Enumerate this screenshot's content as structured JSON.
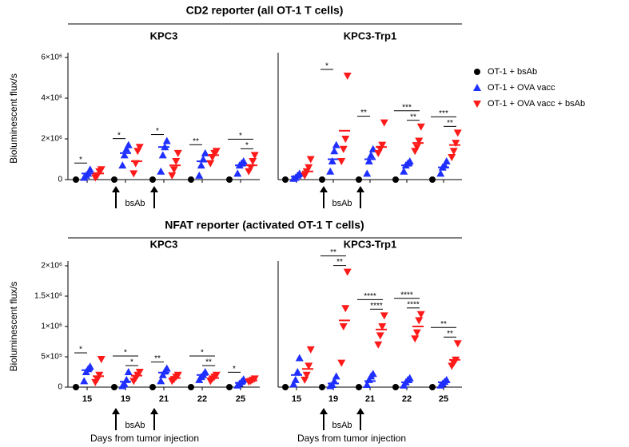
{
  "sections": [
    {
      "title": "CD2 reporter (all OT-1 T cells)"
    },
    {
      "title": "NFAT reporter (activated OT-1 T cells)"
    }
  ],
  "chart_data": [
    {
      "type": "scatter",
      "title": "KPC3",
      "ylabel": "Bioluminescent flux/s",
      "annotation": "bsAb",
      "categories": [
        null,
        null,
        null,
        null,
        null
      ],
      "ylim": [
        0,
        6000000
      ],
      "yticks": [
        0,
        {
          "value": 2000000,
          "label": "2×10⁶"
        },
        {
          "value": 4000000,
          "label": "4×10⁶"
        },
        {
          "value": 6000000,
          "label": "6×10⁶"
        }
      ],
      "series": [
        {
          "name": "OT-1 + bsAb",
          "color": "#000000",
          "marker": "circle",
          "values": [
            0,
            0,
            0,
            0,
            0
          ],
          "points": [
            [
              0
            ],
            [
              0
            ],
            [
              0
            ],
            [
              0
            ],
            [
              0
            ]
          ]
        },
        {
          "name": "OT-1 + OVA vacc",
          "color": "#1f2fff",
          "marker": "triangle-up",
          "values": [
            300000,
            1300000,
            1600000,
            900000,
            700000
          ],
          "points": [
            [
              100000,
              200000,
              300000,
              500000
            ],
            [
              700000,
              1200000,
              1500000,
              1700000
            ],
            [
              400000,
              1200000,
              1600000,
              1900000
            ],
            [
              200000,
              700000,
              1000000,
              1300000
            ],
            [
              300000,
              700000,
              800000,
              900000
            ]
          ]
        },
        {
          "name": "OT-1 + OVA vacc + bsAb",
          "color": "#ff1a1a",
          "marker": "triangle-down",
          "values": [
            300000,
            900000,
            700000,
            1200000,
            700000
          ],
          "points": [
            [
              100000,
              200000,
              400000,
              500000
            ],
            [
              300000,
              800000,
              1400000,
              1600000
            ],
            [
              200000,
              500000,
              900000,
              1300000
            ],
            [
              800000,
              1100000,
              1300000,
              1400000
            ],
            [
              400000,
              600000,
              900000,
              1200000
            ]
          ]
        }
      ],
      "significance": [
        [
          "*"
        ],
        [
          "*"
        ],
        [
          "*"
        ],
        [
          "**"
        ],
        [
          "*",
          "*"
        ]
      ]
    },
    {
      "type": "scatter",
      "title": "KPC3-Trp1",
      "annotation": "bsAb",
      "categories": [
        null,
        null,
        null,
        null,
        null
      ],
      "ylim": [
        0,
        6000000
      ],
      "series": [
        {
          "name": "OT-1 + bsAb",
          "color": "#000000",
          "marker": "circle",
          "values": [
            0,
            0,
            0,
            0,
            0
          ],
          "points": [
            [
              0
            ],
            [
              0
            ],
            [
              0
            ],
            [
              0
            ],
            [
              0
            ]
          ]
        },
        {
          "name": "OT-1 + OVA vacc",
          "color": "#1f2fff",
          "marker": "triangle-up",
          "values": [
            150000,
            1000000,
            1000000,
            700000,
            600000
          ],
          "points": [
            [
              50000,
              100000,
              200000,
              300000
            ],
            [
              400000,
              900000,
              1400000,
              1700000
            ],
            [
              300000,
              900000,
              1200000,
              1500000
            ],
            [
              400000,
              700000,
              800000,
              900000
            ],
            [
              300000,
              600000,
              700000,
              900000
            ]
          ]
        },
        {
          "name": "OT-1 + OVA vacc + bsAb",
          "color": "#ff1a1a",
          "marker": "triangle-down",
          "values": [
            400000,
            2400000,
            1600000,
            1800000,
            1700000
          ],
          "points": [
            [
              200000,
              400000,
              600000,
              1000000
            ],
            [
              900000,
              1500000,
              2000000,
              5100000
            ],
            [
              1300000,
              1500000,
              1700000,
              2800000
            ],
            [
              1400000,
              1600000,
              1900000,
              2600000
            ],
            [
              1100000,
              1400000,
              1800000,
              2300000
            ]
          ]
        }
      ],
      "significance": [
        [],
        [
          "*"
        ],
        [
          "**"
        ],
        [
          "***",
          "**"
        ],
        [
          "***",
          "**"
        ]
      ]
    },
    {
      "type": "scatter",
      "title": "KPC3",
      "ylabel": "Bioluminescent flux/s",
      "xlabel": "Days from tumor injection",
      "annotation": "bsAb",
      "categories": [
        "15",
        "19",
        "21",
        "22",
        "25"
      ],
      "ylim": [
        0,
        2000000
      ],
      "yticks": [
        0,
        {
          "value": 500000,
          "label": "5×10⁵"
        },
        {
          "value": 1000000,
          "label": "1×10⁶"
        },
        {
          "value": 1500000,
          "label": "1.5×10⁶"
        },
        {
          "value": 2000000,
          "label": "2×10⁶"
        }
      ],
      "series": [
        {
          "name": "OT-1 + bsAb",
          "color": "#000000",
          "marker": "circle",
          "values": [
            0,
            0,
            0,
            0,
            0
          ],
          "points": [
            [
              0
            ],
            [
              0
            ],
            [
              0
            ],
            [
              0
            ],
            [
              0
            ]
          ]
        },
        {
          "name": "OT-1 + OVA vacc",
          "color": "#1f2fff",
          "marker": "triangle-up",
          "values": [
            280000,
            90000,
            240000,
            200000,
            70000
          ],
          "points": [
            [
              100000,
              250000,
              300000,
              340000
            ],
            [
              20000,
              50000,
              120000,
              250000
            ],
            [
              100000,
              200000,
              260000,
              310000
            ],
            [
              120000,
              170000,
              200000,
              250000
            ],
            [
              30000,
              60000,
              90000,
              130000
            ]
          ]
        },
        {
          "name": "OT-1 + OVA vacc + bsAb",
          "color": "#ff1a1a",
          "marker": "triangle-down",
          "values": [
            180000,
            190000,
            150000,
            150000,
            110000
          ],
          "points": [
            [
              80000,
              130000,
              200000,
              460000
            ],
            [
              100000,
              150000,
              200000,
              250000
            ],
            [
              100000,
              130000,
              170000,
              200000
            ],
            [
              100000,
              140000,
              170000,
              200000
            ],
            [
              90000,
              100000,
              120000,
              140000
            ]
          ]
        }
      ],
      "significance": [
        [
          "*"
        ],
        [
          "*",
          "*"
        ],
        [
          "**"
        ],
        [
          "*",
          "**"
        ],
        [
          "*"
        ]
      ]
    },
    {
      "type": "scatter",
      "title": "KPC3-Trp1",
      "xlabel": "Days from tumor injection",
      "annotation": "bsAb",
      "categories": [
        "15",
        "19",
        "21",
        "22",
        "25"
      ],
      "ylim": [
        0,
        2000000
      ],
      "series": [
        {
          "name": "OT-1 + bsAb",
          "color": "#000000",
          "marker": "circle",
          "values": [
            0,
            0,
            0,
            0,
            0
          ],
          "points": [
            [
              0
            ],
            [
              0
            ],
            [
              0
            ],
            [
              0
            ],
            [
              0
            ]
          ]
        },
        {
          "name": "OT-1 + OVA vacc",
          "color": "#1f2fff",
          "marker": "triangle-up",
          "values": [
            200000,
            60000,
            100000,
            80000,
            80000
          ],
          "points": [
            [
              50000,
              120000,
              250000,
              480000
            ],
            [
              20000,
              40000,
              100000,
              180000
            ],
            [
              40000,
              120000,
              180000,
              220000
            ],
            [
              30000,
              80000,
              120000,
              150000
            ],
            [
              30000,
              60000,
              90000,
              120000
            ]
          ]
        },
        {
          "name": "OT-1 + OVA vacc + bsAb",
          "color": "#ff1a1a",
          "marker": "triangle-down",
          "values": [
            300000,
            1100000,
            950000,
            1000000,
            450000
          ],
          "points": [
            [
              120000,
              200000,
              350000,
              620000
            ],
            [
              400000,
              1000000,
              1300000,
              1900000
            ],
            [
              700000,
              850000,
              1000000,
              1180000
            ],
            [
              800000,
              900000,
              1100000,
              1200000
            ],
            [
              350000,
              400000,
              450000,
              720000
            ]
          ]
        }
      ],
      "significance": [
        [],
        [
          "**",
          "**"
        ],
        [
          "****",
          "****"
        ],
        [
          "****",
          "****"
        ],
        [
          "**",
          "**"
        ]
      ]
    }
  ]
}
